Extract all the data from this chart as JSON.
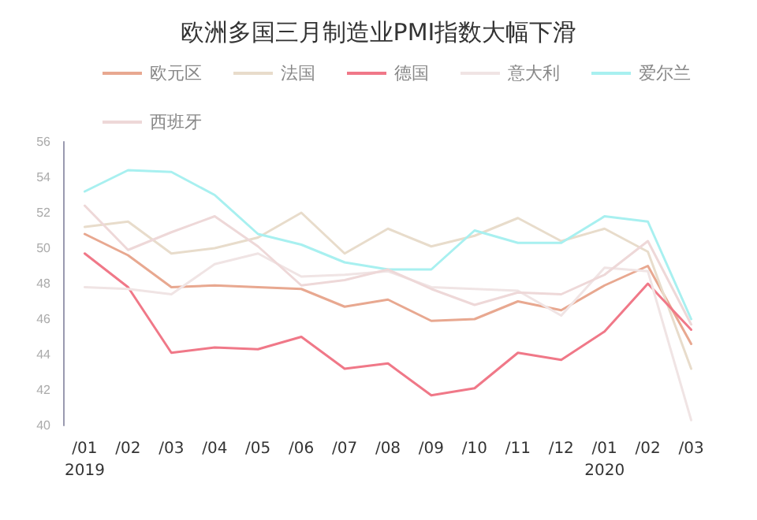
{
  "chart_data": {
    "type": "line",
    "title": "欧洲多国三月制造业PMI指数大幅下滑",
    "categories": [
      "/01\n2019",
      "/02",
      "/03",
      "/04",
      "/05",
      "/06",
      "/07",
      "/08",
      "/09",
      "/10",
      "/11",
      "/12",
      "/01\n2020",
      "/02",
      "/03"
    ],
    "series": [
      {
        "name": "欧元区",
        "color": "#e8a890",
        "values": [
          50.8,
          49.6,
          47.8,
          47.9,
          47.8,
          47.7,
          46.7,
          47.1,
          45.9,
          46.0,
          47.0,
          46.5,
          47.9,
          49.0,
          44.6
        ]
      },
      {
        "name": "法国",
        "color": "#e8dccb",
        "values": [
          51.2,
          51.5,
          49.7,
          50.0,
          50.6,
          52.0,
          49.7,
          51.1,
          50.1,
          50.7,
          51.7,
          50.4,
          51.1,
          49.8,
          43.2
        ]
      },
      {
        "name": "德国",
        "color": "#f07888",
        "values": [
          49.7,
          47.8,
          44.1,
          44.4,
          44.3,
          45.0,
          43.2,
          43.5,
          41.7,
          42.1,
          44.1,
          43.7,
          45.3,
          48.0,
          45.4
        ]
      },
      {
        "name": "意大利",
        "color": "#f0e4e4",
        "values": [
          47.8,
          47.7,
          47.4,
          49.1,
          49.7,
          48.4,
          48.5,
          48.7,
          47.8,
          47.7,
          47.6,
          46.2,
          48.9,
          48.7,
          40.3
        ]
      },
      {
        "name": "爱尔兰",
        "color": "#a8f0f0",
        "values": [
          53.2,
          54.4,
          54.3,
          53.0,
          50.8,
          50.2,
          49.2,
          48.8,
          48.8,
          51.0,
          50.3,
          50.3,
          51.8,
          51.5,
          46.0
        ]
      },
      {
        "name": "西班牙",
        "color": "#eed8d8",
        "values": [
          52.4,
          49.9,
          50.9,
          51.8,
          50.1,
          47.9,
          48.2,
          48.8,
          47.7,
          46.8,
          47.5,
          47.4,
          48.5,
          50.4,
          45.7
        ]
      }
    ],
    "ylim": [
      40,
      56
    ],
    "yticks": [
      40,
      42,
      44,
      46,
      48,
      50,
      52,
      54,
      56
    ],
    "grid": false,
    "legend": "top",
    "marker": "none",
    "line_style": "solid"
  }
}
